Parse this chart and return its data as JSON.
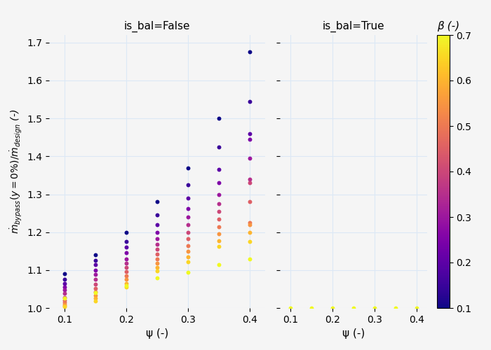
{
  "title_left": "is_bal=False",
  "title_right": "is_bal=True",
  "xlabel": "ψ (-)",
  "ylabel": "$\\dot{m}_{bypass}(y=0\\%)/\\dot{m}_{design}$ (-)",
  "colorbar_label": "β (-)",
  "cmap": "plasma",
  "beta_min": 0.1,
  "beta_max": 0.7,
  "ylim": [
    1.0,
    1.72
  ],
  "xlim": [
    0.075,
    0.425
  ],
  "yticks": [
    1.0,
    1.1,
    1.2,
    1.3,
    1.4,
    1.5,
    1.6,
    1.7
  ],
  "xticks": [
    0.1,
    0.2,
    0.3,
    0.4
  ],
  "marker_size": 18,
  "bg_color": "#f5f5f5",
  "grid_color": "#dce8f5",
  "false_points": [
    [
      0.1,
      0.1,
      1.09
    ],
    [
      0.1,
      0.15,
      1.075
    ],
    [
      0.1,
      0.2,
      1.065
    ],
    [
      0.1,
      0.25,
      1.055
    ],
    [
      0.1,
      0.3,
      1.048
    ],
    [
      0.1,
      0.35,
      1.038
    ],
    [
      0.1,
      0.4,
      1.028
    ],
    [
      0.1,
      0.45,
      1.02
    ],
    [
      0.1,
      0.5,
      1.014
    ],
    [
      0.1,
      0.55,
      1.01
    ],
    [
      0.1,
      0.6,
      1.006
    ],
    [
      0.1,
      0.65,
      1.003
    ],
    [
      0.1,
      0.7,
      1.025
    ],
    [
      0.15,
      0.1,
      1.14
    ],
    [
      0.15,
      0.15,
      1.125
    ],
    [
      0.15,
      0.2,
      1.115
    ],
    [
      0.15,
      0.25,
      1.1
    ],
    [
      0.15,
      0.3,
      1.088
    ],
    [
      0.15,
      0.35,
      1.075
    ],
    [
      0.15,
      0.4,
      1.063
    ],
    [
      0.15,
      0.45,
      1.052
    ],
    [
      0.15,
      0.5,
      1.042
    ],
    [
      0.15,
      0.55,
      1.033
    ],
    [
      0.15,
      0.6,
      1.025
    ],
    [
      0.15,
      0.65,
      1.018
    ],
    [
      0.15,
      0.7,
      1.04
    ],
    [
      0.2,
      0.1,
      1.2
    ],
    [
      0.2,
      0.15,
      1.175
    ],
    [
      0.2,
      0.2,
      1.16
    ],
    [
      0.2,
      0.25,
      1.145
    ],
    [
      0.2,
      0.3,
      1.13
    ],
    [
      0.2,
      0.35,
      1.118
    ],
    [
      0.2,
      0.4,
      1.107
    ],
    [
      0.2,
      0.45,
      1.096
    ],
    [
      0.2,
      0.5,
      1.085
    ],
    [
      0.2,
      0.55,
      1.075
    ],
    [
      0.2,
      0.6,
      1.065
    ],
    [
      0.2,
      0.65,
      1.055
    ],
    [
      0.2,
      0.7,
      1.06
    ],
    [
      0.25,
      0.1,
      1.28
    ],
    [
      0.25,
      0.15,
      1.245
    ],
    [
      0.25,
      0.2,
      1.22
    ],
    [
      0.25,
      0.25,
      1.2
    ],
    [
      0.25,
      0.3,
      1.183
    ],
    [
      0.25,
      0.35,
      1.168
    ],
    [
      0.25,
      0.4,
      1.155
    ],
    [
      0.25,
      0.45,
      1.142
    ],
    [
      0.25,
      0.5,
      1.13
    ],
    [
      0.25,
      0.55,
      1.118
    ],
    [
      0.25,
      0.6,
      1.108
    ],
    [
      0.25,
      0.65,
      1.098
    ],
    [
      0.25,
      0.7,
      1.08
    ],
    [
      0.3,
      0.1,
      1.37
    ],
    [
      0.3,
      0.15,
      1.325
    ],
    [
      0.3,
      0.2,
      1.29
    ],
    [
      0.3,
      0.25,
      1.263
    ],
    [
      0.3,
      0.3,
      1.24
    ],
    [
      0.3,
      0.35,
      1.22
    ],
    [
      0.3,
      0.4,
      1.2
    ],
    [
      0.3,
      0.45,
      1.182
    ],
    [
      0.3,
      0.5,
      1.165
    ],
    [
      0.3,
      0.55,
      1.15
    ],
    [
      0.3,
      0.6,
      1.135
    ],
    [
      0.3,
      0.65,
      1.122
    ],
    [
      0.3,
      0.7,
      1.095
    ],
    [
      0.35,
      0.1,
      1.5
    ],
    [
      0.35,
      0.15,
      1.425
    ],
    [
      0.35,
      0.2,
      1.365
    ],
    [
      0.35,
      0.25,
      1.33
    ],
    [
      0.35,
      0.3,
      1.3
    ],
    [
      0.35,
      0.35,
      1.275
    ],
    [
      0.35,
      0.4,
      1.255
    ],
    [
      0.35,
      0.45,
      1.235
    ],
    [
      0.35,
      0.5,
      1.215
    ],
    [
      0.35,
      0.55,
      1.196
    ],
    [
      0.35,
      0.6,
      1.178
    ],
    [
      0.35,
      0.65,
      1.162
    ],
    [
      0.35,
      0.7,
      1.115
    ],
    [
      0.4,
      0.1,
      1.675
    ],
    [
      0.4,
      0.15,
      1.545
    ],
    [
      0.4,
      0.2,
      1.46
    ],
    [
      0.4,
      0.25,
      1.445
    ],
    [
      0.4,
      0.3,
      1.395
    ],
    [
      0.4,
      0.35,
      1.34
    ],
    [
      0.4,
      0.4,
      1.33
    ],
    [
      0.4,
      0.45,
      1.28
    ],
    [
      0.4,
      0.5,
      1.225
    ],
    [
      0.4,
      0.55,
      1.22
    ],
    [
      0.4,
      0.6,
      1.2
    ],
    [
      0.4,
      0.65,
      1.175
    ],
    [
      0.4,
      0.7,
      1.13
    ]
  ],
  "true_points": [
    [
      0.1,
      0.7,
      1.0
    ],
    [
      0.15,
      0.7,
      1.0
    ],
    [
      0.2,
      0.7,
      1.0
    ],
    [
      0.25,
      0.7,
      1.0
    ],
    [
      0.3,
      0.7,
      1.0
    ],
    [
      0.35,
      0.7,
      1.0
    ],
    [
      0.4,
      0.7,
      1.0
    ]
  ]
}
